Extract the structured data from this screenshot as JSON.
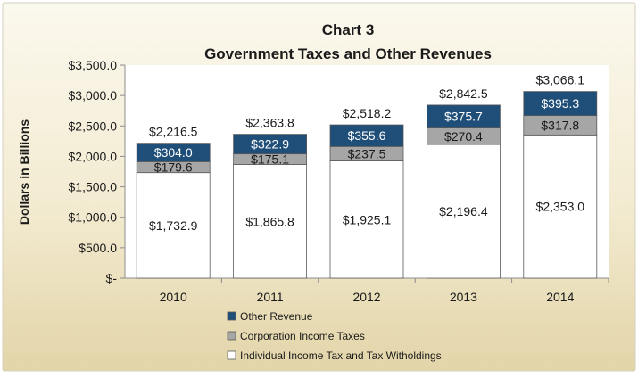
{
  "chart_data": {
    "type": "bar",
    "stacked": true,
    "title": "Chart 3",
    "subtitle": "Government Taxes and Other Revenues",
    "xlabel": "",
    "ylabel": "Dollars in Billions",
    "ylim": [
      0,
      3500
    ],
    "yticks": [
      "$-",
      "$500.0",
      "$1,000.0",
      "$1,500.0",
      "$2,000.0",
      "$2,500.0",
      "$3,000.0",
      "$3,500.0"
    ],
    "categories": [
      "2010",
      "2011",
      "2012",
      "2013",
      "2014"
    ],
    "series": [
      {
        "name": "Individual Income Tax and Tax Witholdings",
        "values": [
          1732.9,
          1865.8,
          1925.1,
          2196.4,
          2353.0
        ],
        "labels": [
          "$1,732.9",
          "$1,865.8",
          "$1,925.1",
          "$2,196.4",
          "$2,353.0"
        ],
        "color": "#ffffff"
      },
      {
        "name": "Corporation Income Taxes",
        "values": [
          179.6,
          175.1,
          237.5,
          270.4,
          317.8
        ],
        "labels": [
          "$179.6",
          "$175.1",
          "$237.5",
          "$270.4",
          "$317.8"
        ],
        "color": "#a6a6a6"
      },
      {
        "name": "Other Revenue",
        "values": [
          304.0,
          322.9,
          355.6,
          375.7,
          395.3
        ],
        "labels": [
          "$304.0",
          "$322.9",
          "$355.6",
          "$375.7",
          "$395.3"
        ],
        "color": "#1f4e79"
      }
    ],
    "totals": [
      2216.5,
      2363.8,
      2518.2,
      2842.5,
      3066.1
    ],
    "total_labels": [
      "$2,216.5",
      "$2,363.8",
      "$2,518.2",
      "$2,842.5",
      "$3,066.1"
    ],
    "legend_position": "bottom",
    "grid": false
  }
}
